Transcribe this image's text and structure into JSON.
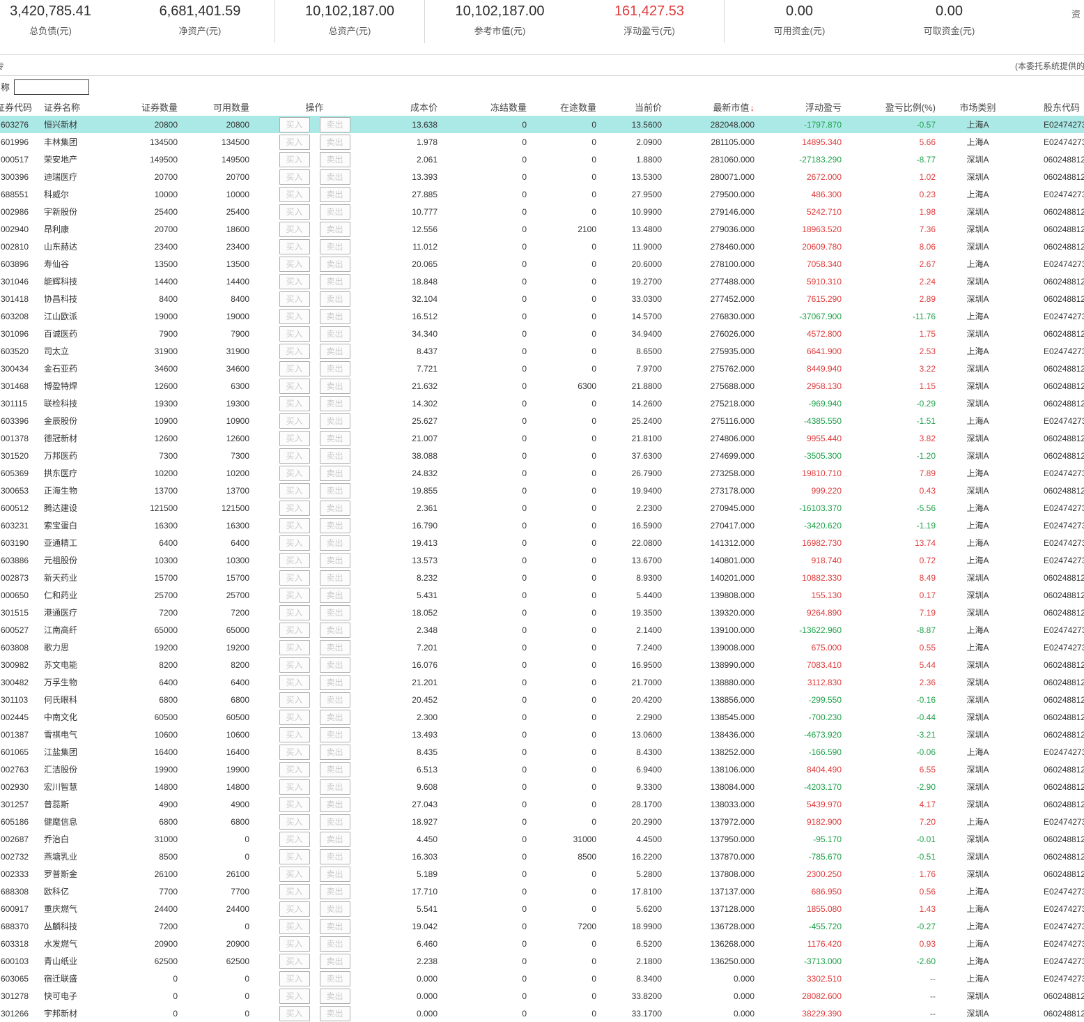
{
  "colors": {
    "positive": "#e03c3c",
    "negative": "#1fa24a",
    "highlight": "#abe9e6",
    "muted": "#555"
  },
  "account_summary": {
    "stats": [
      {
        "value": "3,420,785.41",
        "label": "总负债(元)"
      },
      {
        "value": "6,681,401.59",
        "label": "净资产(元)",
        "divider": true
      },
      {
        "value": "10,102,187.00",
        "label": "总资产(元)",
        "divider": true
      },
      {
        "value": "10,102,187.00",
        "label": "参考市值(元)"
      },
      {
        "value": "161,427.53",
        "label": "浮动盈亏(元)",
        "color": "#e03c3c",
        "divider": true
      },
      {
        "value": "0.00",
        "label": "可用资金(元)"
      },
      {
        "value": "0.00",
        "label": "可取资金(元)"
      },
      {
        "value": "",
        "label": "资",
        "partial": true
      }
    ]
  },
  "notice": {
    "text": "(本委托系统提供的",
    "left_fragment": "专"
  },
  "filter": {
    "label": "名称",
    "value": ""
  },
  "table": {
    "buy_label": "买入",
    "sell_label": "卖出",
    "selected_row_index": 0,
    "columns": [
      {
        "key": "code",
        "label": "证券代码"
      },
      {
        "key": "name",
        "label": "证券名称"
      },
      {
        "key": "qty",
        "label": "证券数量"
      },
      {
        "key": "avail",
        "label": "可用数量"
      },
      {
        "key": "ops",
        "label": "操作"
      },
      {
        "key": "cost",
        "label": "成本价"
      },
      {
        "key": "frozen",
        "label": "冻结数量"
      },
      {
        "key": "transit",
        "label": "在途数量"
      },
      {
        "key": "price",
        "label": "当前价"
      },
      {
        "key": "mktval",
        "label": "最新市值",
        "sort": "↓"
      },
      {
        "key": "pnl",
        "label": "浮动盈亏"
      },
      {
        "key": "ratio",
        "label": "盈亏比例(%)"
      },
      {
        "key": "market",
        "label": "市场类别"
      },
      {
        "key": "holder",
        "label": "股东代码"
      }
    ],
    "rows": [
      [
        "603276",
        "恒兴新材",
        "20800",
        "20800",
        "13.638",
        "0",
        "0",
        "13.5600",
        "282048.000",
        "-1797.870",
        "-0.57",
        "上海A",
        "E02474273"
      ],
      [
        "601996",
        "丰林集团",
        "134500",
        "134500",
        "1.978",
        "0",
        "0",
        "2.0900",
        "281105.000",
        "14895.340",
        "5.66",
        "上海A",
        "E02474273"
      ],
      [
        "000517",
        "荣安地产",
        "149500",
        "149500",
        "2.061",
        "0",
        "0",
        "1.8800",
        "281060.000",
        "-27183.290",
        "-8.77",
        "深圳A",
        "060248812"
      ],
      [
        "300396",
        "迪瑞医疗",
        "20700",
        "20700",
        "13.393",
        "0",
        "0",
        "13.5300",
        "280071.000",
        "2672.000",
        "1.02",
        "深圳A",
        "060248812"
      ],
      [
        "688551",
        "科威尔",
        "10000",
        "10000",
        "27.885",
        "0",
        "0",
        "27.9500",
        "279500.000",
        "486.300",
        "0.23",
        "上海A",
        "E02474273"
      ],
      [
        "002986",
        "宇新股份",
        "25400",
        "25400",
        "10.777",
        "0",
        "0",
        "10.9900",
        "279146.000",
        "5242.710",
        "1.98",
        "深圳A",
        "060248812"
      ],
      [
        "002940",
        "昂利康",
        "20700",
        "18600",
        "12.556",
        "0",
        "2100",
        "13.4800",
        "279036.000",
        "18963.520",
        "7.36",
        "深圳A",
        "060248812"
      ],
      [
        "002810",
        "山东赫达",
        "23400",
        "23400",
        "11.012",
        "0",
        "0",
        "11.9000",
        "278460.000",
        "20609.780",
        "8.06",
        "深圳A",
        "060248812"
      ],
      [
        "603896",
        "寿仙谷",
        "13500",
        "13500",
        "20.065",
        "0",
        "0",
        "20.6000",
        "278100.000",
        "7058.340",
        "2.67",
        "上海A",
        "E02474273"
      ],
      [
        "301046",
        "能辉科技",
        "14400",
        "14400",
        "18.848",
        "0",
        "0",
        "19.2700",
        "277488.000",
        "5910.310",
        "2.24",
        "深圳A",
        "060248812"
      ],
      [
        "301418",
        "协昌科技",
        "8400",
        "8400",
        "32.104",
        "0",
        "0",
        "33.0300",
        "277452.000",
        "7615.290",
        "2.89",
        "深圳A",
        "060248812"
      ],
      [
        "603208",
        "江山欧派",
        "19000",
        "19000",
        "16.512",
        "0",
        "0",
        "14.5700",
        "276830.000",
        "-37067.900",
        "-11.76",
        "上海A",
        "E02474273"
      ],
      [
        "301096",
        "百诚医药",
        "7900",
        "7900",
        "34.340",
        "0",
        "0",
        "34.9400",
        "276026.000",
        "4572.800",
        "1.75",
        "深圳A",
        "060248812"
      ],
      [
        "603520",
        "司太立",
        "31900",
        "31900",
        "8.437",
        "0",
        "0",
        "8.6500",
        "275935.000",
        "6641.900",
        "2.53",
        "上海A",
        "E02474273"
      ],
      [
        "300434",
        "金石亚药",
        "34600",
        "34600",
        "7.721",
        "0",
        "0",
        "7.9700",
        "275762.000",
        "8449.940",
        "3.22",
        "深圳A",
        "060248812"
      ],
      [
        "301468",
        "博盈特焊",
        "12600",
        "6300",
        "21.632",
        "0",
        "6300",
        "21.8800",
        "275688.000",
        "2958.130",
        "1.15",
        "深圳A",
        "060248812"
      ],
      [
        "301115",
        "联检科技",
        "19300",
        "19300",
        "14.302",
        "0",
        "0",
        "14.2600",
        "275218.000",
        "-969.940",
        "-0.29",
        "深圳A",
        "060248812"
      ],
      [
        "603396",
        "金辰股份",
        "10900",
        "10900",
        "25.627",
        "0",
        "0",
        "25.2400",
        "275116.000",
        "-4385.550",
        "-1.51",
        "上海A",
        "E02474273"
      ],
      [
        "001378",
        "德冠新材",
        "12600",
        "12600",
        "21.007",
        "0",
        "0",
        "21.8100",
        "274806.000",
        "9955.440",
        "3.82",
        "深圳A",
        "060248812"
      ],
      [
        "301520",
        "万邦医药",
        "7300",
        "7300",
        "38.088",
        "0",
        "0",
        "37.6300",
        "274699.000",
        "-3505.300",
        "-1.20",
        "深圳A",
        "060248812"
      ],
      [
        "605369",
        "拱东医疗",
        "10200",
        "10200",
        "24.832",
        "0",
        "0",
        "26.7900",
        "273258.000",
        "19810.710",
        "7.89",
        "上海A",
        "E02474273"
      ],
      [
        "300653",
        "正海生物",
        "13700",
        "13700",
        "19.855",
        "0",
        "0",
        "19.9400",
        "273178.000",
        "999.220",
        "0.43",
        "深圳A",
        "060248812"
      ],
      [
        "600512",
        "腾达建设",
        "121500",
        "121500",
        "2.361",
        "0",
        "0",
        "2.2300",
        "270945.000",
        "-16103.370",
        "-5.56",
        "上海A",
        "E02474273"
      ],
      [
        "603231",
        "索宝蛋白",
        "16300",
        "16300",
        "16.790",
        "0",
        "0",
        "16.5900",
        "270417.000",
        "-3420.620",
        "-1.19",
        "上海A",
        "E02474273"
      ],
      [
        "603190",
        "亚通精工",
        "6400",
        "6400",
        "19.413",
        "0",
        "0",
        "22.0800",
        "141312.000",
        "16982.730",
        "13.74",
        "上海A",
        "E02474273"
      ],
      [
        "603886",
        "元祖股份",
        "10300",
        "10300",
        "13.573",
        "0",
        "0",
        "13.6700",
        "140801.000",
        "918.740",
        "0.72",
        "上海A",
        "E02474273"
      ],
      [
        "002873",
        "新天药业",
        "15700",
        "15700",
        "8.232",
        "0",
        "0",
        "8.9300",
        "140201.000",
        "10882.330",
        "8.49",
        "深圳A",
        "060248812"
      ],
      [
        "000650",
        "仁和药业",
        "25700",
        "25700",
        "5.431",
        "0",
        "0",
        "5.4400",
        "139808.000",
        "155.130",
        "0.17",
        "深圳A",
        "060248812"
      ],
      [
        "301515",
        "港通医疗",
        "7200",
        "7200",
        "18.052",
        "0",
        "0",
        "19.3500",
        "139320.000",
        "9264.890",
        "7.19",
        "深圳A",
        "060248812"
      ],
      [
        "600527",
        "江南高纤",
        "65000",
        "65000",
        "2.348",
        "0",
        "0",
        "2.1400",
        "139100.000",
        "-13622.960",
        "-8.87",
        "上海A",
        "E02474273"
      ],
      [
        "603808",
        "歌力思",
        "19200",
        "19200",
        "7.201",
        "0",
        "0",
        "7.2400",
        "139008.000",
        "675.000",
        "0.55",
        "上海A",
        "E02474273"
      ],
      [
        "300982",
        "苏文电能",
        "8200",
        "8200",
        "16.076",
        "0",
        "0",
        "16.9500",
        "138990.000",
        "7083.410",
        "5.44",
        "深圳A",
        "060248812"
      ],
      [
        "300482",
        "万孚生物",
        "6400",
        "6400",
        "21.201",
        "0",
        "0",
        "21.7000",
        "138880.000",
        "3112.830",
        "2.36",
        "深圳A",
        "060248812"
      ],
      [
        "301103",
        "何氏眼科",
        "6800",
        "6800",
        "20.452",
        "0",
        "0",
        "20.4200",
        "138856.000",
        "-299.550",
        "-0.16",
        "深圳A",
        "060248812"
      ],
      [
        "002445",
        "中南文化",
        "60500",
        "60500",
        "2.300",
        "0",
        "0",
        "2.2900",
        "138545.000",
        "-700.230",
        "-0.44",
        "深圳A",
        "060248812"
      ],
      [
        "001387",
        "雪祺电气",
        "10600",
        "10600",
        "13.493",
        "0",
        "0",
        "13.0600",
        "138436.000",
        "-4673.920",
        "-3.21",
        "深圳A",
        "060248812"
      ],
      [
        "601065",
        "江盐集团",
        "16400",
        "16400",
        "8.435",
        "0",
        "0",
        "8.4300",
        "138252.000",
        "-166.590",
        "-0.06",
        "上海A",
        "E02474273"
      ],
      [
        "002763",
        "汇洁股份",
        "19900",
        "19900",
        "6.513",
        "0",
        "0",
        "6.9400",
        "138106.000",
        "8404.490",
        "6.55",
        "深圳A",
        "060248812"
      ],
      [
        "002930",
        "宏川智慧",
        "14800",
        "14800",
        "9.608",
        "0",
        "0",
        "9.3300",
        "138084.000",
        "-4203.170",
        "-2.90",
        "深圳A",
        "060248812"
      ],
      [
        "301257",
        "普蕊斯",
        "4900",
        "4900",
        "27.043",
        "0",
        "0",
        "28.1700",
        "138033.000",
        "5439.970",
        "4.17",
        "深圳A",
        "060248812"
      ],
      [
        "605186",
        "健麾信息",
        "6800",
        "6800",
        "18.927",
        "0",
        "0",
        "20.2900",
        "137972.000",
        "9182.900",
        "7.20",
        "上海A",
        "E02474273"
      ],
      [
        "002687",
        "乔治白",
        "31000",
        "0",
        "4.450",
        "0",
        "31000",
        "4.4500",
        "137950.000",
        "-95.170",
        "-0.01",
        "深圳A",
        "060248812"
      ],
      [
        "002732",
        "燕塘乳业",
        "8500",
        "0",
        "16.303",
        "0",
        "8500",
        "16.2200",
        "137870.000",
        "-785.670",
        "-0.51",
        "深圳A",
        "060248812"
      ],
      [
        "002333",
        "罗普斯金",
        "26100",
        "26100",
        "5.189",
        "0",
        "0",
        "5.2800",
        "137808.000",
        "2300.250",
        "1.76",
        "深圳A",
        "060248812"
      ],
      [
        "688308",
        "欧科亿",
        "7700",
        "7700",
        "17.710",
        "0",
        "0",
        "17.8100",
        "137137.000",
        "686.950",
        "0.56",
        "上海A",
        "E02474273"
      ],
      [
        "600917",
        "重庆燃气",
        "24400",
        "24400",
        "5.541",
        "0",
        "0",
        "5.6200",
        "137128.000",
        "1855.080",
        "1.43",
        "上海A",
        "E02474273"
      ],
      [
        "688370",
        "丛麟科技",
        "7200",
        "0",
        "19.042",
        "0",
        "7200",
        "18.9900",
        "136728.000",
        "-455.720",
        "-0.27",
        "上海A",
        "E02474273"
      ],
      [
        "603318",
        "水发燃气",
        "20900",
        "20900",
        "6.460",
        "0",
        "0",
        "6.5200",
        "136268.000",
        "1176.420",
        "0.93",
        "上海A",
        "E02474273"
      ],
      [
        "600103",
        "青山纸业",
        "62500",
        "62500",
        "2.238",
        "0",
        "0",
        "2.1800",
        "136250.000",
        "-3713.000",
        "-2.60",
        "上海A",
        "E02474273"
      ],
      [
        "603065",
        "宿迁联盛",
        "0",
        "0",
        "0.000",
        "0",
        "0",
        "8.3400",
        "0.000",
        "3302.510",
        "--",
        "上海A",
        "E02474273"
      ],
      [
        "301278",
        "快可电子",
        "0",
        "0",
        "0.000",
        "0",
        "0",
        "33.8200",
        "0.000",
        "28082.600",
        "--",
        "深圳A",
        "060248812"
      ],
      [
        "301266",
        "宇邦新材",
        "0",
        "0",
        "0.000",
        "0",
        "0",
        "33.1700",
        "0.000",
        "38229.390",
        "--",
        "深圳A",
        "060248812"
      ]
    ]
  }
}
